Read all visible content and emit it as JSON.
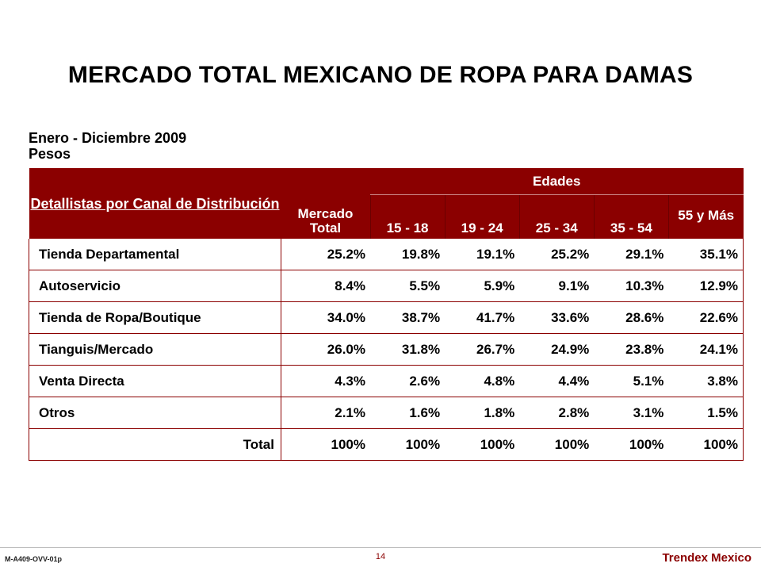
{
  "title": "MERCADO TOTAL MEXICANO DE ROPA PARA DAMAS",
  "subtitle": {
    "line1": "Enero - Diciembre 2009",
    "line2": "Pesos"
  },
  "table": {
    "header_canal": "Detallistas por Canal de Distribución",
    "header_mercado": "Mercado Total",
    "header_edades": "Edades",
    "age_groups": [
      "15 - 18",
      "19 - 24",
      "25 - 34",
      "35 - 54",
      "55 y Más"
    ],
    "rows": [
      {
        "label": "Tienda Departamental",
        "values": [
          "25.2%",
          "19.8%",
          "19.1%",
          "25.2%",
          "29.1%",
          "35.1%"
        ]
      },
      {
        "label": "Autoservicio",
        "values": [
          "8.4%",
          "5.5%",
          "5.9%",
          "9.1%",
          "10.3%",
          "12.9%"
        ]
      },
      {
        "label": "Tienda de Ropa/Boutique",
        "values": [
          "34.0%",
          "38.7%",
          "41.7%",
          "33.6%",
          "28.6%",
          "22.6%"
        ]
      },
      {
        "label": "Tianguis/Mercado",
        "values": [
          "26.0%",
          "31.8%",
          "26.7%",
          "24.9%",
          "23.8%",
          "24.1%"
        ]
      },
      {
        "label": "Venta Directa",
        "values": [
          "4.3%",
          "2.6%",
          "4.8%",
          "4.4%",
          "5.1%",
          "3.8%"
        ]
      },
      {
        "label": "Otros",
        "values": [
          "2.1%",
          "1.6%",
          "1.8%",
          "2.8%",
          "3.1%",
          "1.5%"
        ]
      },
      {
        "label": "Total",
        "values": [
          "100%",
          "100%",
          "100%",
          "100%",
          "100%",
          "100%"
        ]
      }
    ]
  },
  "footer": {
    "code": "M-A409-OVV-01p",
    "page": "14",
    "brand": "Trendex Mexico"
  },
  "colors": {
    "header_bg": "#8b0000",
    "accent": "#8b0000"
  }
}
